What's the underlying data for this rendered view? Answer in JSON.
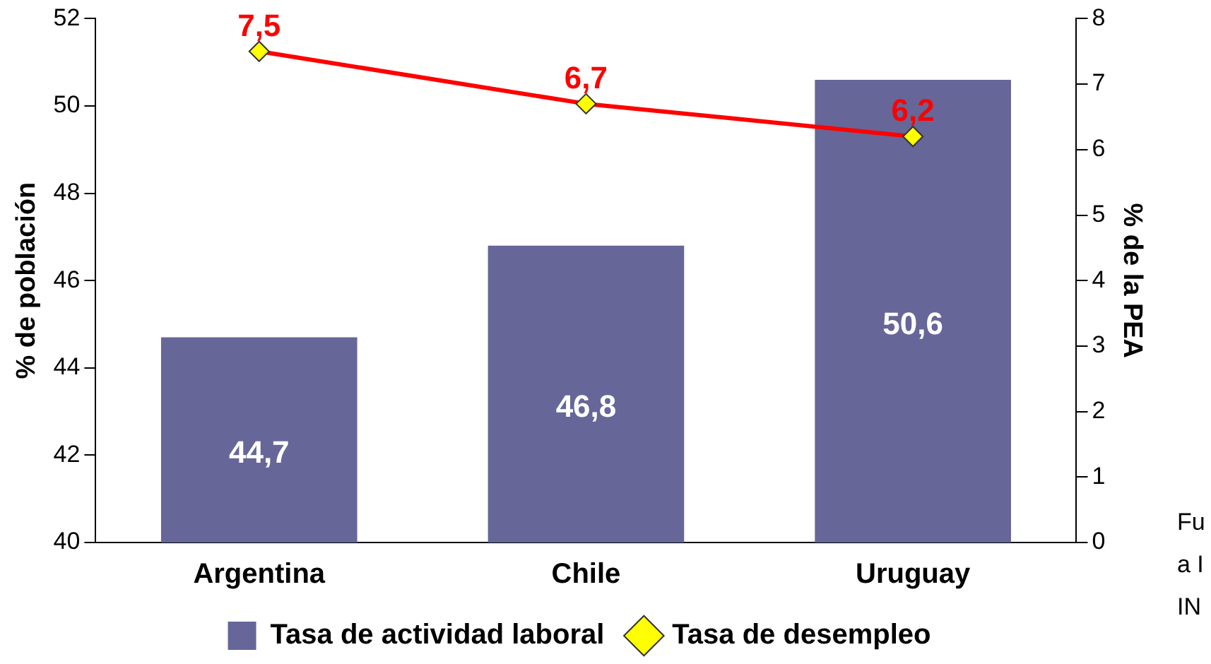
{
  "chart_data": {
    "type": "bar",
    "categories": [
      "Argentina",
      "Chile",
      "Uruguay"
    ],
    "series": [
      {
        "name": "Tasa de actividad laboral",
        "color": "#666699",
        "values": [
          44.7,
          46.8,
          50.6
        ],
        "value_labels": [
          "44,7",
          "46,8",
          "50,6"
        ]
      },
      {
        "name": "Tasa de desempleo",
        "type": "line",
        "axis": "y2",
        "color": "#ff0000",
        "values": [
          7.5,
          6.7,
          6.2
        ],
        "value_labels": [
          "7,5",
          "6,7",
          "6,2"
        ]
      }
    ],
    "ylabel": "% de población",
    "y2label": "% de la PEA",
    "ylim": [
      40,
      52
    ],
    "yticks": [
      40,
      42,
      44,
      46,
      48,
      50,
      52
    ],
    "y2lim": [
      0,
      8
    ],
    "y2ticks": [
      0,
      1,
      2,
      3,
      4,
      5,
      6,
      7,
      8
    ],
    "grid": false,
    "legend": "bottom",
    "marker": "diamond",
    "annotations": [
      "Fu",
      "a I",
      "IN"
    ]
  }
}
